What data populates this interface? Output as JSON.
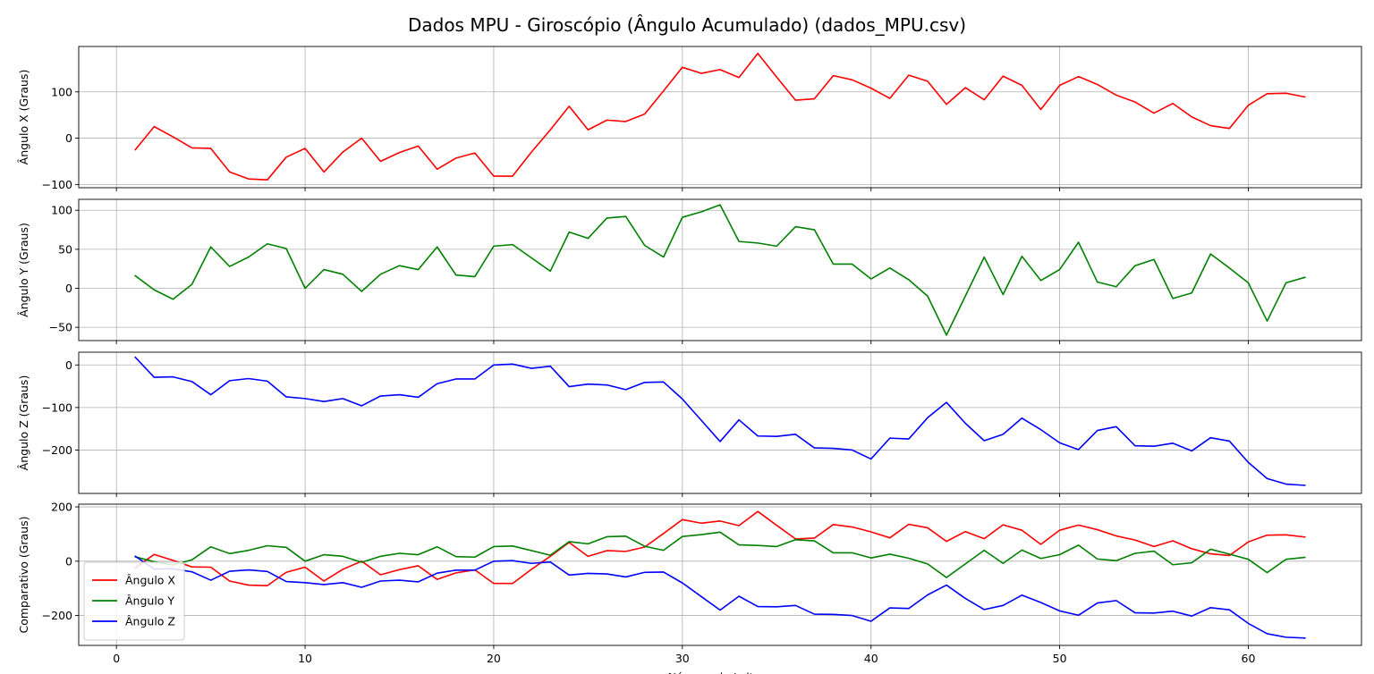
{
  "figure": {
    "title": "Dados MPU - Giroscópio (Ângulo Acumulado) (dados_MPU.csv)"
  },
  "chart_data": [
    {
      "type": "line",
      "ylabel": "Ângulo X (Graus)",
      "xlabel": "",
      "xlim": [
        -2,
        66
      ],
      "ylim": [
        -107,
        198
      ],
      "xticks": [
        0,
        10,
        20,
        30,
        40,
        50,
        60
      ],
      "yticks": [
        -100,
        0,
        100
      ],
      "grid": true,
      "series": [
        {
          "color": "#ff0000",
          "x_start": 1,
          "values": [
            -25,
            25,
            3,
            -21,
            -22,
            -73,
            -88,
            -90,
            -41,
            -22,
            -73,
            -30,
            0,
            -50,
            -31,
            -17,
            -67,
            -43,
            -32,
            -82,
            -82,
            -30,
            18,
            69,
            18,
            39,
            36,
            52,
            102,
            153,
            140,
            148,
            131,
            183,
            132,
            82,
            85,
            135,
            126,
            108,
            86,
            136,
            123,
            73,
            109,
            83,
            134,
            114,
            62,
            114,
            133,
            116,
            93,
            78,
            54,
            75,
            46,
            27,
            21,
            71,
            96,
            97,
            89
          ]
        }
      ]
    },
    {
      "type": "line",
      "ylabel": "Ângulo Y (Graus)",
      "xlabel": "",
      "xlim": [
        -2,
        66
      ],
      "ylim": [
        -67,
        114
      ],
      "xticks": [
        0,
        10,
        20,
        30,
        40,
        50,
        60
      ],
      "yticks": [
        -50,
        0,
        50,
        100
      ],
      "grid": true,
      "series": [
        {
          "color": "#008000",
          "x_start": 1,
          "values": [
            16,
            -2,
            -14,
            5,
            53,
            28,
            40,
            57,
            51,
            0,
            24,
            18,
            -4,
            18,
            29,
            24,
            53,
            17,
            15,
            54,
            56,
            39,
            22,
            72,
            64,
            90,
            92,
            55,
            40,
            91,
            98,
            107,
            60,
            58,
            54,
            79,
            75,
            31,
            31,
            12,
            26,
            11,
            -10,
            -60,
            -10,
            40,
            -8,
            41,
            10,
            24,
            59,
            8,
            2,
            29,
            37,
            -13,
            -6,
            44,
            26,
            7,
            -42,
            7,
            14
          ]
        }
      ]
    },
    {
      "type": "line",
      "ylabel": "Ângulo Z (Graus)",
      "xlabel": "",
      "xlim": [
        -2,
        66
      ],
      "ylim": [
        -302,
        30
      ],
      "xticks": [
        0,
        10,
        20,
        30,
        40,
        50,
        60
      ],
      "yticks": [
        -200,
        -100,
        0
      ],
      "grid": true,
      "series": [
        {
          "color": "#0000ff",
          "x_start": 1,
          "values": [
            18,
            -29,
            -28,
            -39,
            -70,
            -37,
            -32,
            -38,
            -75,
            -79,
            -86,
            -79,
            -96,
            -73,
            -70,
            -76,
            -44,
            -33,
            -33,
            0,
            2,
            -8,
            -3,
            -51,
            -45,
            -47,
            -58,
            -41,
            -40,
            -80,
            -130,
            -180,
            -129,
            -167,
            -168,
            -163,
            -195,
            -196,
            -200,
            -221,
            -172,
            -174,
            -124,
            -88,
            -137,
            -178,
            -163,
            -125,
            -152,
            -183,
            -199,
            -154,
            -145,
            -190,
            -191,
            -184,
            -202,
            -171,
            -179,
            -229,
            -267,
            -280,
            -283
          ]
        }
      ]
    },
    {
      "type": "line",
      "ylabel": "Comparativo (Graus)",
      "xlabel": "Número da Leitura",
      "xlim": [
        -2,
        66
      ],
      "ylim": [
        -310,
        210
      ],
      "xticks": [
        0,
        10,
        20,
        30,
        40,
        50,
        60
      ],
      "yticks": [
        -200,
        0,
        200
      ],
      "grid": true,
      "legend": "lower-left",
      "series": [
        {
          "name": "Ângulo X",
          "color": "#ff0000",
          "x_start": 1,
          "values": [
            -25,
            25,
            3,
            -21,
            -22,
            -73,
            -88,
            -90,
            -41,
            -22,
            -73,
            -30,
            0,
            -50,
            -31,
            -17,
            -67,
            -43,
            -32,
            -82,
            -82,
            -30,
            18,
            69,
            18,
            39,
            36,
            52,
            102,
            153,
            140,
            148,
            131,
            183,
            132,
            82,
            85,
            135,
            126,
            108,
            86,
            136,
            123,
            73,
            109,
            83,
            134,
            114,
            62,
            114,
            133,
            116,
            93,
            78,
            54,
            75,
            46,
            27,
            21,
            71,
            96,
            97,
            89
          ]
        },
        {
          "name": "Ângulo Y",
          "color": "#008000",
          "x_start": 1,
          "values": [
            16,
            -2,
            -14,
            5,
            53,
            28,
            40,
            57,
            51,
            0,
            24,
            18,
            -4,
            18,
            29,
            24,
            53,
            17,
            15,
            54,
            56,
            39,
            22,
            72,
            64,
            90,
            92,
            55,
            40,
            91,
            98,
            107,
            60,
            58,
            54,
            79,
            75,
            31,
            31,
            12,
            26,
            11,
            -10,
            -60,
            -10,
            40,
            -8,
            41,
            10,
            24,
            59,
            8,
            2,
            29,
            37,
            -13,
            -6,
            44,
            26,
            7,
            -42,
            7,
            14
          ]
        },
        {
          "name": "Ângulo Z",
          "color": "#0000ff",
          "x_start": 1,
          "values": [
            18,
            -29,
            -28,
            -39,
            -70,
            -37,
            -32,
            -38,
            -75,
            -79,
            -86,
            -79,
            -96,
            -73,
            -70,
            -76,
            -44,
            -33,
            -33,
            0,
            2,
            -8,
            -3,
            -51,
            -45,
            -47,
            -58,
            -41,
            -40,
            -80,
            -130,
            -180,
            -129,
            -167,
            -168,
            -163,
            -195,
            -196,
            -200,
            -221,
            -172,
            -174,
            -124,
            -88,
            -137,
            -178,
            -163,
            -125,
            -152,
            -183,
            -199,
            -154,
            -145,
            -190,
            -191,
            -184,
            -202,
            -171,
            -179,
            -229,
            -267,
            -280,
            -283
          ]
        }
      ]
    }
  ]
}
